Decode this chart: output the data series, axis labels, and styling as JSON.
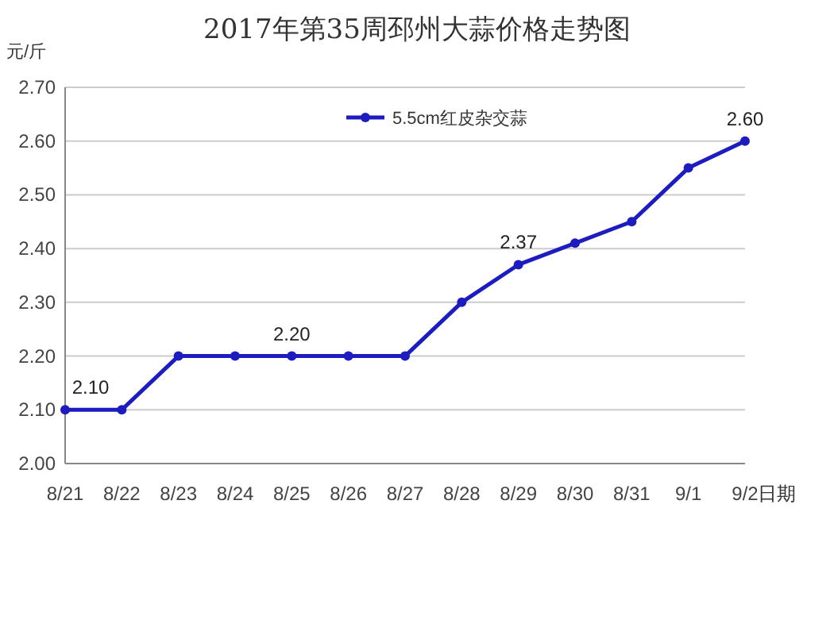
{
  "chart_data": {
    "type": "line",
    "title": "2017年第35周邳州大蒜价格走势图",
    "ylabel": "元/斤",
    "xlabel": "日期",
    "categories": [
      "8/21",
      "8/22",
      "8/23",
      "8/24",
      "8/25",
      "8/26",
      "8/27",
      "8/28",
      "8/29",
      "8/30",
      "8/31",
      "9/1",
      "9/2"
    ],
    "series": [
      {
        "name": "5.5cm红皮杂交蒜",
        "color": "#1c1cc0",
        "values": [
          2.1,
          2.1,
          2.2,
          2.2,
          2.2,
          2.2,
          2.2,
          2.3,
          2.37,
          2.41,
          2.45,
          2.55,
          2.6
        ],
        "value_labels": [
          "2.10",
          null,
          null,
          null,
          "2.20",
          null,
          null,
          null,
          "2.37",
          null,
          null,
          null,
          "2.60"
        ]
      }
    ],
    "ylim": [
      2.0,
      2.7
    ],
    "yticks": [
      {
        "value": 2.0,
        "label": "2.00"
      },
      {
        "value": 2.1,
        "label": "2.10"
      },
      {
        "value": 2.2,
        "label": "2.20"
      },
      {
        "value": 2.3,
        "label": "2.30"
      },
      {
        "value": 2.4,
        "label": "2.40"
      },
      {
        "value": 2.5,
        "label": "2.50"
      },
      {
        "value": 2.6,
        "label": "2.60"
      },
      {
        "value": 2.7,
        "label": "2.70"
      }
    ],
    "grid": "y",
    "legend": "top",
    "marker": "circle",
    "line_style": "solid"
  }
}
